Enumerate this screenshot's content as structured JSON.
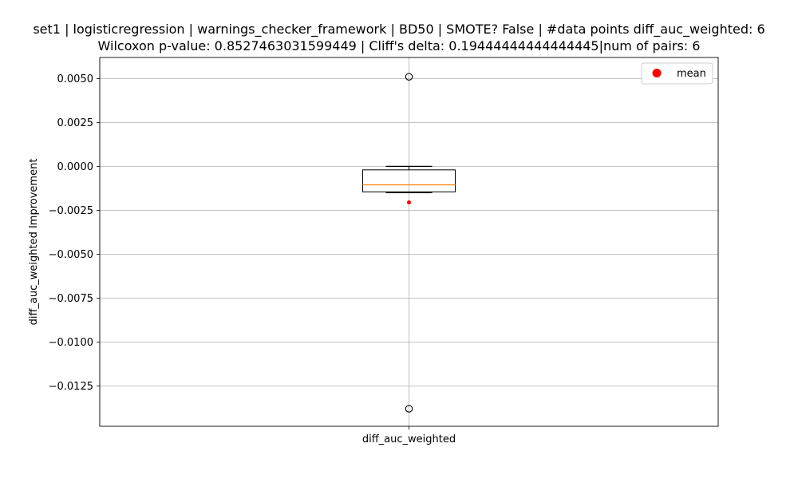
{
  "chart_data": {
    "type": "box",
    "title_line1": "set1 | logisticregression | warnings_checker_framework | BD50 | SMOTE? False | #data points diff_auc_weighted: 6",
    "title_line2": "Wilcoxon p-value: 0.8527463031599449 | Cliff's delta: 0.19444444444444445|num of pairs: 6",
    "xlabel": "",
    "ylabel": "diff_auc_weighted Improvement",
    "category": "diff_auc_weighted",
    "ylim": [
      -0.0148,
      0.0062
    ],
    "yticks": [
      0.005,
      0.0025,
      0.0,
      -0.0025,
      -0.005,
      -0.0075,
      -0.01,
      -0.0125
    ],
    "ytick_labels": [
      "0.0050",
      "0.0025",
      "0.0000",
      "−0.0025",
      "−0.0050",
      "−0.0075",
      "−0.0100",
      "−0.0125"
    ],
    "grid": true,
    "box": {
      "whisker_low": -0.0015,
      "q1": -0.00145,
      "median": -0.00105,
      "q3": -0.0002,
      "whisker_high": 0.0,
      "mean": -0.00205,
      "outliers": [
        0.0051,
        -0.0138
      ]
    },
    "legend": {
      "position": "top-right",
      "entries": [
        "mean"
      ]
    },
    "colors": {
      "median": "#ff7f0e",
      "mean": "#ff0000",
      "grid": "#b0b0b0",
      "box": "#000000"
    }
  }
}
